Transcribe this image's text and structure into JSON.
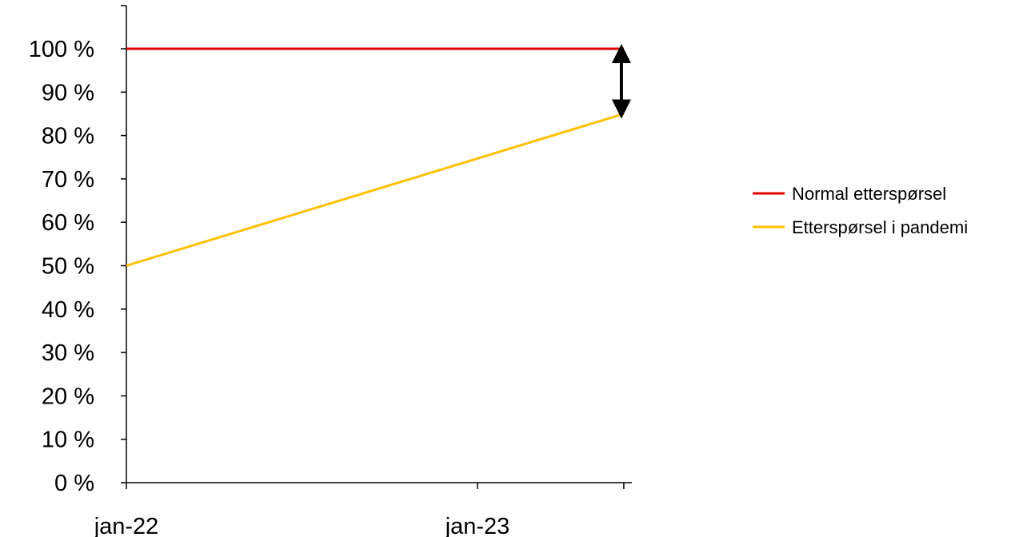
{
  "chart_data": {
    "type": "line",
    "x_categories": [
      "jan-22",
      "jan-23"
    ],
    "x_range": [
      "2022-01",
      "2023-06"
    ],
    "ylim": [
      0,
      100
    ],
    "y_ticks": [
      "0 %",
      "10 %",
      "20 %",
      "30 %",
      "40 %",
      "50 %",
      "60 %",
      "70 %",
      "80 %",
      "90 %",
      "100 %"
    ],
    "grid": false,
    "legend_position": "right",
    "series": [
      {
        "name": "Normal etterspørsel",
        "color": "#e00000",
        "points": [
          {
            "x": "2022-01",
            "y": 100
          },
          {
            "x": "2023-06",
            "y": 100
          }
        ]
      },
      {
        "name": "Etterspørsel i pandemi",
        "color": "#ffc000",
        "points": [
          {
            "x": "2022-01",
            "y": 50
          },
          {
            "x": "2023-06",
            "y": 85
          }
        ]
      }
    ],
    "annotations": [
      {
        "type": "double-arrow",
        "x": "2023-06",
        "y_from": 100,
        "y_to": 85,
        "color": "#000000"
      }
    ]
  }
}
